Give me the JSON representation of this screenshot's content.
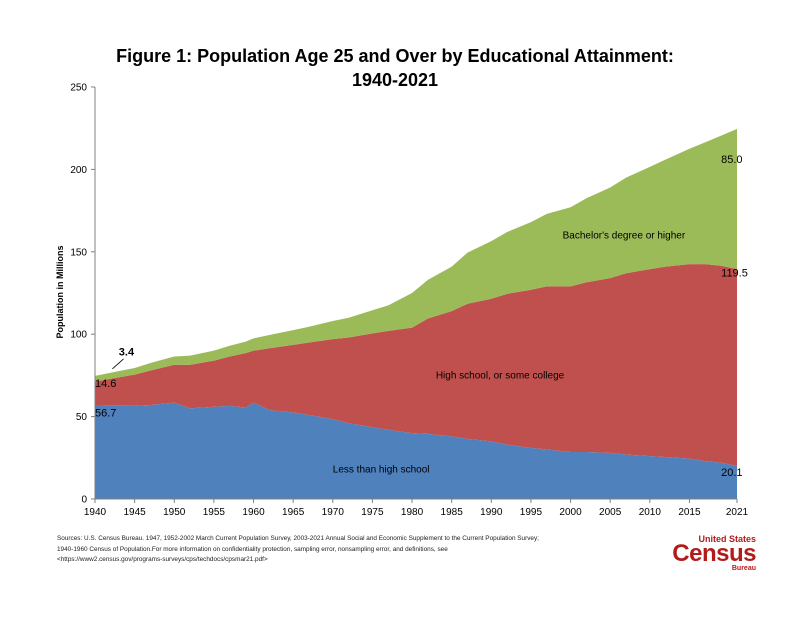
{
  "title_line1": "Figure 1: Population Age 25 and Over by Educational Attainment:",
  "title_line2": "1940-2021",
  "sources": [
    "Sources:  U.S. Census Bureau. 1947, 1952-2002 March Current Population Survey, 2003-2021 Annual Social and Economic Supplement to the Current Population Survey;",
    "1940-1960 Census of Population.For more information on confidentiality protection, sampling error, nonsampling error, and definitions, see",
    "<https://www2.census.gov/programs-surveys/cps/techdocs/cpsmar21.pdf>"
  ],
  "logo": {
    "top": "United States",
    "main": "Census",
    "bottom": "Bureau"
  },
  "chart_data": {
    "type": "area",
    "stacked": true,
    "title": "Figure 1: Population Age 25 and Over by Educational Attainment: 1940-2021",
    "ylabel": "Population in Millions",
    "xlabel": "",
    "xlim": [
      1940,
      2021
    ],
    "ylim": [
      0,
      250
    ],
    "yticks": [
      0,
      50,
      100,
      150,
      200,
      250
    ],
    "xticks": [
      1940,
      1945,
      1950,
      1955,
      1960,
      1965,
      1970,
      1975,
      1980,
      1985,
      1990,
      1995,
      2000,
      2005,
      2010,
      2015,
      2021
    ],
    "grid": false,
    "x": [
      1940,
      1945,
      1947,
      1950,
      1952,
      1955,
      1957,
      1959,
      1960,
      1962,
      1965,
      1967,
      1970,
      1972,
      1975,
      1977,
      1980,
      1982,
      1985,
      1987,
      1990,
      1992,
      1995,
      1997,
      2000,
      2002,
      2005,
      2007,
      2010,
      2012,
      2015,
      2017,
      2019,
      2021
    ],
    "series": [
      {
        "name": "Less than high school",
        "color": "#4f81bd",
        "values": [
          56.7,
          56.5,
          57,
          58.5,
          55,
          56,
          56.5,
          55.5,
          58.5,
          54,
          52.5,
          51,
          48.5,
          46,
          43.5,
          42,
          40,
          39.5,
          38,
          36.5,
          35,
          33,
          31,
          30,
          28.5,
          28.5,
          28,
          27,
          26,
          25.5,
          24.5,
          23,
          22,
          20.1
        ]
      },
      {
        "name": "High school, or some college",
        "color": "#c0504d",
        "values": [
          14.6,
          19,
          21,
          23,
          26.5,
          28,
          30,
          33,
          31.5,
          37.5,
          41,
          44,
          48.5,
          52,
          57,
          60,
          64,
          70,
          76,
          82,
          86.5,
          91.5,
          96,
          99,
          100.5,
          103,
          106,
          110,
          113.5,
          115.5,
          118,
          119.5,
          119.5,
          119.5
        ]
      },
      {
        "name": "Bachelor's degree or higher",
        "color": "#9bbb59",
        "values": [
          3.4,
          4,
          4.5,
          5,
          5.5,
          6,
          6.5,
          7,
          7.5,
          8,
          9,
          9.5,
          11,
          12,
          14,
          15.5,
          21,
          23.5,
          27,
          31,
          35,
          37.5,
          41,
          44,
          48,
          51,
          55,
          58,
          62,
          65,
          70,
          74,
          79,
          85.0
        ]
      }
    ],
    "annotations": [
      {
        "text": "56.7",
        "x": 1940,
        "y": 50
      },
      {
        "text": "14.6",
        "x": 1940,
        "y": 68
      },
      {
        "text": "3.4",
        "x": 1943,
        "y": 87
      },
      {
        "text": "20.1",
        "x": 2019,
        "y": 14
      },
      {
        "text": "119.5",
        "x": 2019,
        "y": 135
      },
      {
        "text": "85.0",
        "x": 2019,
        "y": 204
      },
      {
        "text": "Less than high school",
        "x": 1970,
        "y": 16
      },
      {
        "text": "High school, or some college",
        "x": 1983,
        "y": 73
      },
      {
        "text": "Bachelor's degree or higher",
        "x": 1999,
        "y": 158
      }
    ]
  }
}
